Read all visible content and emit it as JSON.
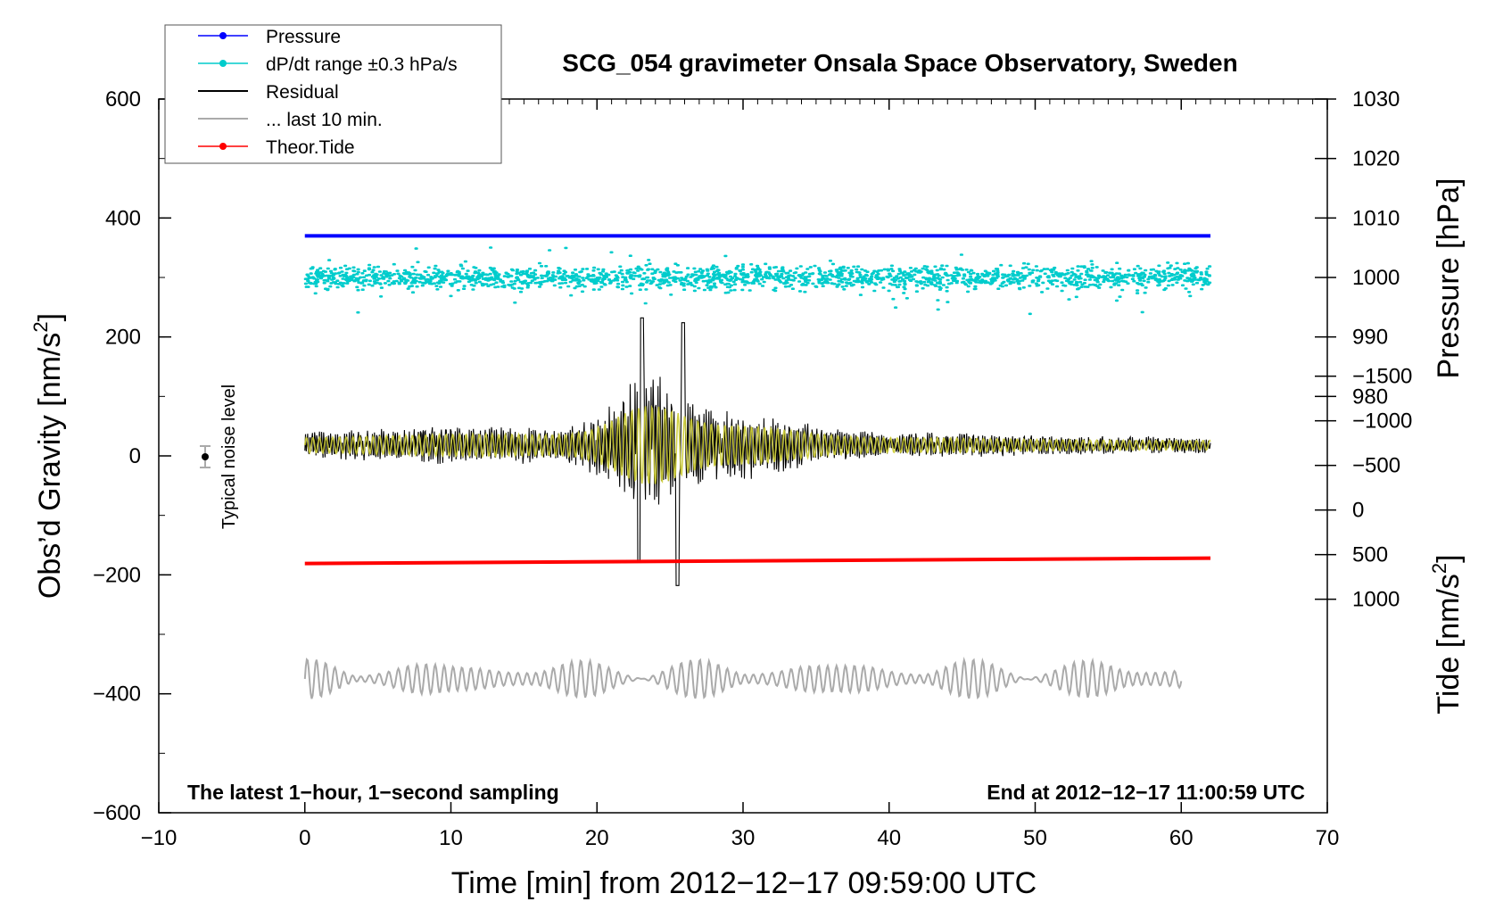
{
  "chart_data": {
    "type": "scatter",
    "title": "SCG_054 gravimeter Onsala Space Observatory, Sweden",
    "xlabel": "Time [min] from 2012−12−17 09:59:00 UTC",
    "ylabel_left": "Obs’d Gravity [nm/s²]",
    "ylabel_left_main": "Obs’d Gravity [nm/s",
    "ylabel_left_sup": "2",
    "ylabel_left_close": "]",
    "ylabel_right_top": "Pressure [hPa]",
    "ylabel_right_bottom_main": "Tide [nm/s",
    "ylabel_right_bottom_sup": "2",
    "ylabel_right_bottom_close": "]",
    "xlim": [
      -10,
      70
    ],
    "ylim_left": [
      -600,
      600
    ],
    "pressure_axis_range": [
      970,
      1030
    ],
    "tide_axis_range": [
      -1500,
      1500
    ],
    "x_ticks": [
      "−10",
      "0",
      "10",
      "20",
      "30",
      "40",
      "50",
      "60",
      "70"
    ],
    "y_ticks_left": [
      "−600",
      "−400",
      "−200",
      "0",
      "200",
      "400",
      "600"
    ],
    "y_ticks_right_pressure": [
      "980",
      "990",
      "1000",
      "1010",
      "1020",
      "1030"
    ],
    "y_ticks_right_tide": [
      "−1500",
      "−1000",
      "−500",
      "0",
      "500",
      "1000"
    ],
    "grid": false,
    "legend_placement": "top-left",
    "series": [
      {
        "name": "Pressure",
        "color": "#0000ff",
        "kind": "line-markers",
        "pressure_hPa": 1007,
        "x_range_min": [
          0,
          62
        ]
      },
      {
        "name": "dP/dt range ±0.3 hPa/s",
        "color": "#00cccc",
        "kind": "markers",
        "center_hPa": 1000,
        "x_range_min": [
          0,
          62
        ]
      },
      {
        "name": "Residual",
        "color": "#000000",
        "kind": "line",
        "baseline_nm_s2": 18,
        "peak_min_nm_s2": -218,
        "peak_max_nm_s2": 232,
        "x_range_min": [
          0,
          62
        ]
      },
      {
        "name": "... last 10 min.",
        "color": "#aaaaaa",
        "kind": "line",
        "baseline_nm_s2": -375,
        "x_range_min": [
          0,
          60
        ]
      },
      {
        "name": "Theor.Tide",
        "color": "#ff0000",
        "kind": "line-markers",
        "tide_start_nm_s2": 600,
        "tide_end_nm_s2": 540,
        "x_range_min": [
          0,
          62
        ]
      }
    ],
    "filtered_series_color": "#cccc33",
    "noise_marker": {
      "x_min": -7,
      "y_nm_s2": 0,
      "error_nm_s2": 20
    },
    "annotations": {
      "noise": "Typical noise level",
      "bottom_left": "The latest 1−hour, 1−second sampling",
      "bottom_right": "End at 2012−12−17 11:00:59 UTC"
    }
  }
}
